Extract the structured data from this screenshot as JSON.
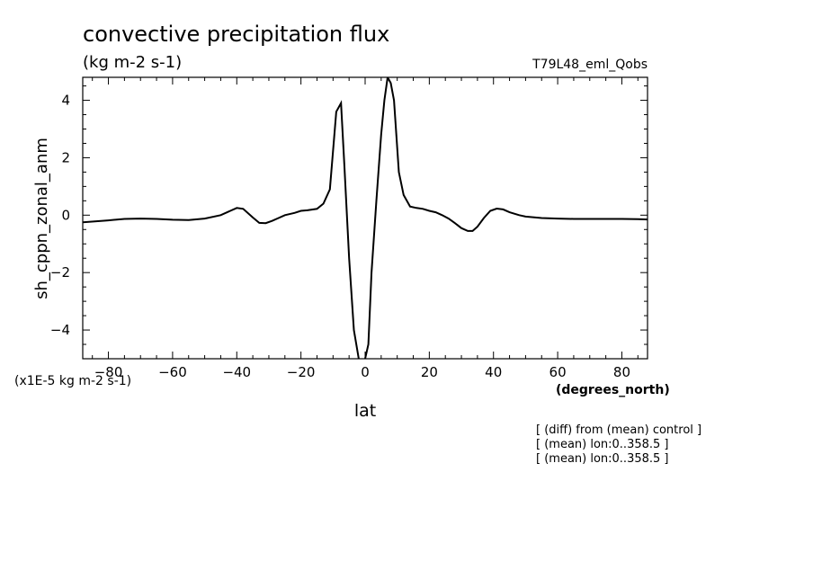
{
  "chart_data": {
    "type": "line",
    "title": "convective precipitation flux",
    "units_label": "(kg m-2 s-1)",
    "run_label": "T79L48_eml_Qobs",
    "ylabel": "sh_cppn_zonal_anm",
    "xlabel": "lat",
    "x_units": "(degrees_north)",
    "y_scale_note": "(x1E-5 kg m-2 s-1)",
    "xlim": [
      -88,
      88
    ],
    "ylim": [
      -5,
      4.8
    ],
    "x_ticks": [
      -80,
      -60,
      -40,
      -20,
      0,
      20,
      40,
      60,
      80
    ],
    "y_ticks": [
      -4,
      -2,
      0,
      2,
      4
    ],
    "x_tick_labels": [
      "−80",
      "−60",
      "−40",
      "−20",
      "0",
      "20",
      "40",
      "60",
      "80"
    ],
    "y_tick_labels": [
      "−4",
      "−2",
      "0",
      "2",
      "4"
    ],
    "grid": false,
    "notes": [
      "[ (diff) from (mean) control ]",
      "[ (mean) lon:0..358.5 ]",
      "[ (mean) lon:0..358.5 ]"
    ],
    "series": [
      {
        "x": [
          -88,
          -80,
          -75,
          -70,
          -65,
          -60,
          -55,
          -50,
          -45,
          -42,
          -40,
          -38,
          -35,
          -33,
          -31,
          -29,
          -27,
          -25,
          -22,
          -20,
          -18,
          -15,
          -13,
          -11,
          -9,
          -7.5,
          -6.5,
          -5,
          -3.5,
          -2,
          -1,
          0,
          1,
          2,
          3.5,
          5,
          6,
          7,
          8,
          9,
          10.5,
          12,
          14,
          16,
          18,
          20,
          22,
          24,
          26,
          28,
          30,
          32,
          33.5,
          35,
          37,
          39,
          41,
          43,
          45,
          48,
          50,
          55,
          60,
          65,
          70,
          75,
          80,
          85,
          88
        ],
        "y": [
          -0.25,
          -0.18,
          -0.13,
          -0.12,
          -0.13,
          -0.16,
          -0.17,
          -0.12,
          0.0,
          0.15,
          0.25,
          0.22,
          -0.08,
          -0.27,
          -0.28,
          -0.2,
          -0.1,
          0.0,
          0.08,
          0.15,
          0.17,
          0.22,
          0.4,
          0.9,
          3.6,
          3.9,
          1.8,
          -1.5,
          -4.0,
          -5.0,
          -5.2,
          -5.0,
          -4.5,
          -2.0,
          0.5,
          2.8,
          4.0,
          4.8,
          4.6,
          4.0,
          1.5,
          0.7,
          0.3,
          0.25,
          0.22,
          0.15,
          0.1,
          0.0,
          -0.12,
          -0.28,
          -0.45,
          -0.55,
          -0.55,
          -0.4,
          -0.1,
          0.15,
          0.23,
          0.2,
          0.1,
          0.0,
          -0.05,
          -0.1,
          -0.12,
          -0.13,
          -0.13,
          -0.13,
          -0.13,
          -0.14,
          -0.15
        ]
      }
    ]
  }
}
